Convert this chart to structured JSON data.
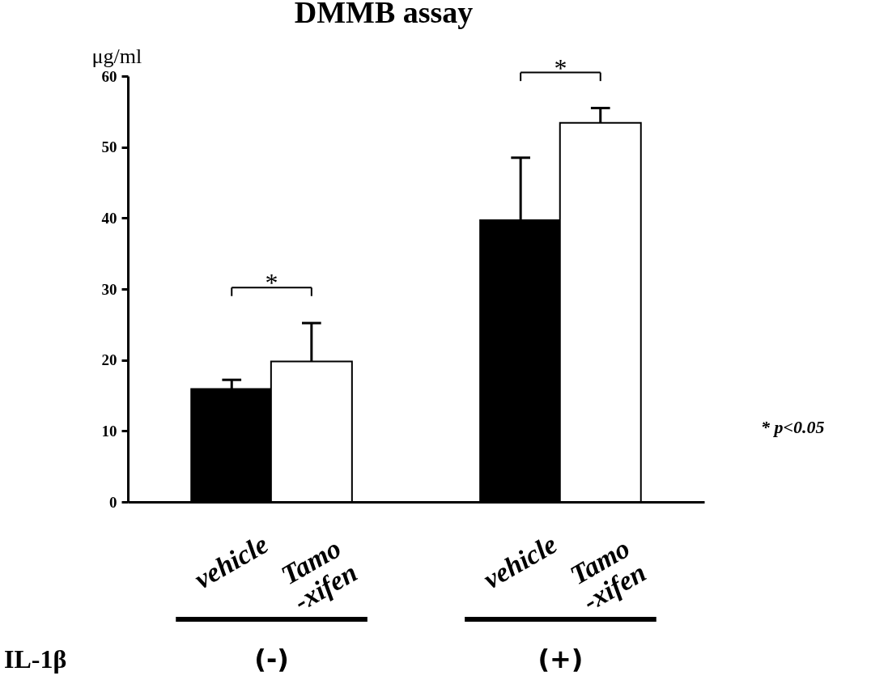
{
  "chart_data": {
    "type": "bar",
    "title": "DMMB assay",
    "ylabel": "μg/ml",
    "categories": [
      "vehicle",
      "Tamo\n-xifen",
      "vehicle",
      "Tamo\n-xifen"
    ],
    "values": [
      15.9,
      19.8,
      39.7,
      53.4
    ],
    "colors": [
      "#000000",
      "#ffffff",
      "#000000",
      "#ffffff"
    ],
    "errors": [
      [
        15.9,
        17.2
      ],
      [
        19.8,
        25.2
      ],
      [
        39.7,
        48.5
      ],
      [
        53.4,
        55.5
      ]
    ],
    "ylim": [
      0,
      60
    ],
    "yticks": [
      0,
      10,
      20,
      30,
      40,
      50,
      60
    ],
    "grid": false,
    "legend": false,
    "annotations": [
      "IL-1β",
      "(-)",
      "(+)",
      "*",
      "*",
      "* p<0.05"
    ]
  }
}
